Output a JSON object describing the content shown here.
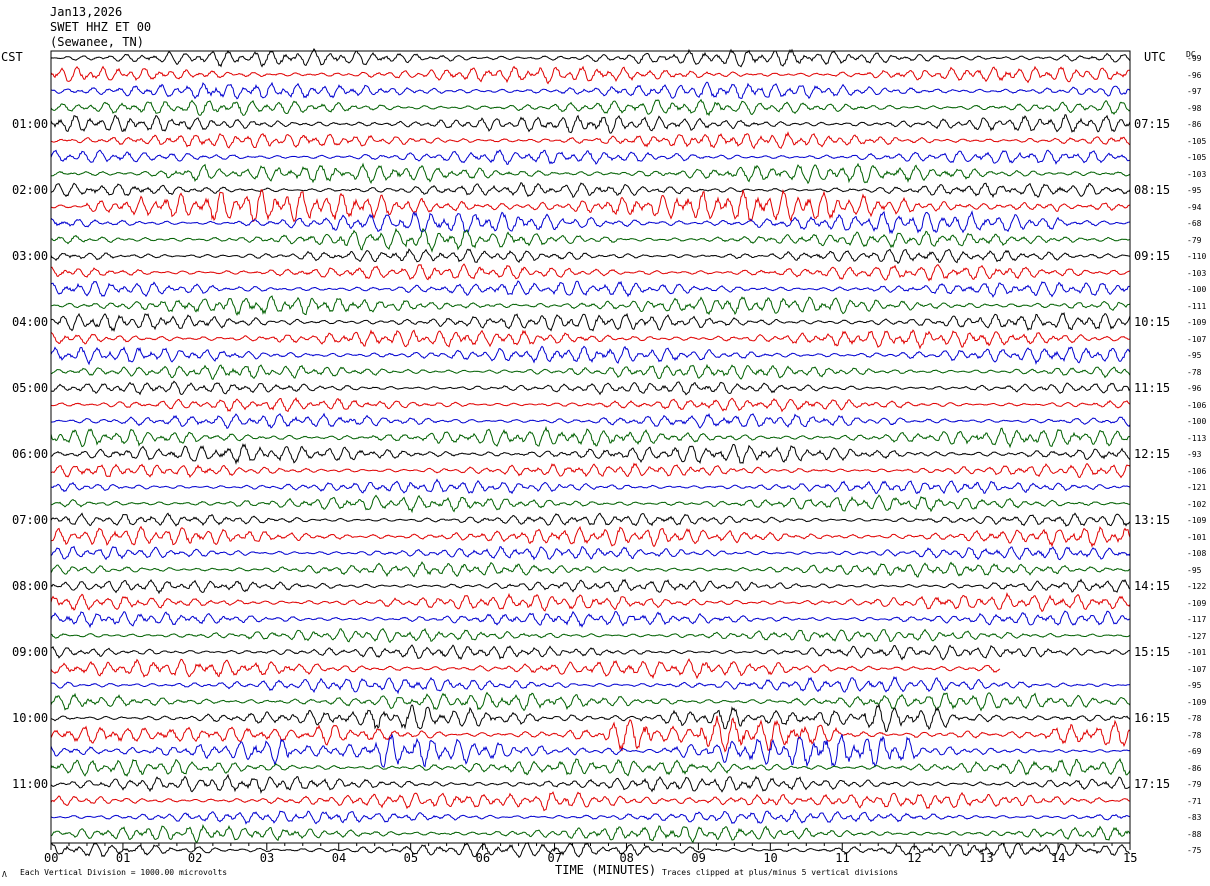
{
  "header": {
    "date": "Jan13,2026",
    "station": "SWET HHZ ET 00",
    "location": "(Sewanee, TN)"
  },
  "left_tz": "CST",
  "right_tz": "UTC",
  "dc_label": "DC",
  "footer": {
    "xlabel": "TIME (MINUTES)",
    "scale_note": "Each Vertical Division = 1000.00 microvolts",
    "clip_note": "Traces clipped at plus/minus 5 vertical divisions",
    "corner_mark": "Λ"
  },
  "chart_data": {
    "type": "line",
    "title": "SWET HHZ ET 00 (Sewanee, TN) Jan13,2026",
    "xlabel": "TIME (MINUTES)",
    "xlim": [
      0,
      15
    ],
    "x_ticks": [
      "00",
      "01",
      "02",
      "03",
      "04",
      "05",
      "06",
      "07",
      "08",
      "09",
      "10",
      "11",
      "12",
      "13",
      "14",
      "15"
    ],
    "trace_colors": [
      "#000000",
      "#e00000",
      "#0000d0",
      "#006000"
    ],
    "lines_per_hour": 4,
    "minutes_per_line": 15,
    "hour_labels_left": [
      "01:00",
      "02:00",
      "03:00",
      "04:00",
      "05:00",
      "06:00",
      "07:00",
      "08:00",
      "09:00",
      "10:00",
      "11:00"
    ],
    "hour_labels_right": [
      "07:15",
      "08:15",
      "09:15",
      "10:15",
      "11:15",
      "12:15",
      "13:15",
      "14:15",
      "15:15",
      "16:15",
      "17:15"
    ],
    "dc_offsets": [
      -99,
      -96,
      -97,
      -98,
      -86,
      -105,
      -105,
      -103,
      -95,
      -94,
      -68,
      -79,
      -110,
      -103,
      -100,
      -111,
      -109,
      -107,
      -95,
      -78,
      -96,
      -106,
      -100,
      -113,
      -93,
      -106,
      -121,
      -102,
      -109,
      -101,
      -108,
      -95,
      -122,
      -109,
      -117,
      -127,
      -101,
      -107,
      -95,
      -109,
      -78,
      -78,
      -69,
      -86,
      -79,
      -71,
      -83,
      -88,
      -75
    ],
    "trace_count": 49,
    "gap_start_trace": 37,
    "gap_start_minute": 13.2
  }
}
